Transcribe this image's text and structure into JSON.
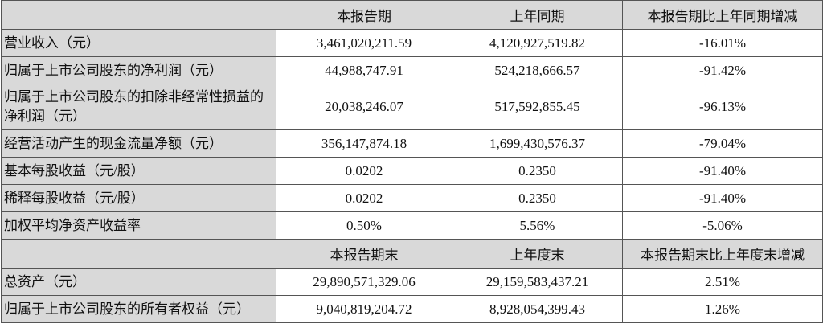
{
  "section1": {
    "headers": [
      "",
      "本报告期",
      "上年同期",
      "本报告期比上年同期增减"
    ],
    "rows": [
      {
        "label": "营业收入（元）",
        "current": "3,461,020,211.59",
        "prior": "4,120,927,519.82",
        "change": "-16.01%"
      },
      {
        "label": "归属于上市公司股东的净利润（元）",
        "current": "44,988,747.91",
        "prior": "524,218,666.57",
        "change": "-91.42%"
      },
      {
        "label": "归属于上市公司股东的扣除非经常性损益的净利润（元）",
        "current": "20,038,246.07",
        "prior": "517,592,855.45",
        "change": "-96.13%"
      },
      {
        "label": "经营活动产生的现金流量净额（元）",
        "current": "356,147,874.18",
        "prior": "1,699,430,576.37",
        "change": "-79.04%"
      },
      {
        "label": "基本每股收益（元/股）",
        "current": "0.0202",
        "prior": "0.2350",
        "change": "-91.40%"
      },
      {
        "label": "稀释每股收益（元/股）",
        "current": "0.0202",
        "prior": "0.2350",
        "change": "-91.40%"
      },
      {
        "label": "加权平均净资产收益率",
        "current": "0.50%",
        "prior": "5.56%",
        "change": "-5.06%"
      }
    ]
  },
  "section2": {
    "headers": [
      "",
      "本报告期末",
      "上年度末",
      "本报告期末比上年度末增减"
    ],
    "rows": [
      {
        "label": "总资产（元）",
        "current": "29,890,571,329.06",
        "prior": "29,159,583,437.21",
        "change": "2.51%"
      },
      {
        "label": "归属于上市公司股东的所有者权益（元）",
        "current": "9,040,819,204.72",
        "prior": "8,928,054,399.43",
        "change": "1.26%"
      }
    ]
  }
}
